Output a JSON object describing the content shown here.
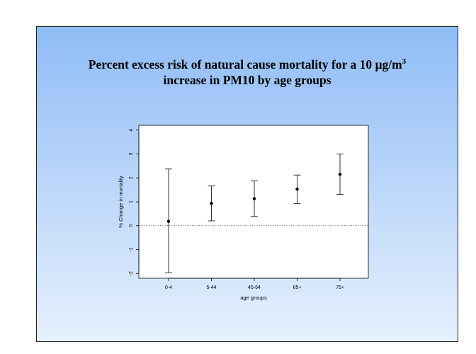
{
  "slide": {
    "title_line1_prefix": "Percent excess risk of natural cause mortality for a 10 µg/m",
    "title_line1_sup": "3",
    "title_line2": "increase in PM10 by age groups"
  },
  "chart_data": {
    "type": "scatter",
    "title": "Percent excess risk of natural cause mortality for a 10 µg/m3 increase in PM10 by age groups",
    "xlabel": "age groups",
    "ylabel": "% Change in mortality",
    "categories": [
      "0-4",
      "5-44",
      "45-64",
      "65+",
      "75+"
    ],
    "points": [
      {
        "category": "0-4",
        "estimate": 0.18,
        "lower": -1.97,
        "upper": 2.37
      },
      {
        "category": "5-44",
        "estimate": 0.93,
        "lower": 0.2,
        "upper": 1.66
      },
      {
        "category": "45-64",
        "estimate": 1.13,
        "lower": 0.38,
        "upper": 1.87
      },
      {
        "category": "65+",
        "estimate": 1.53,
        "lower": 0.92,
        "upper": 2.12
      },
      {
        "category": "75+",
        "estimate": 2.15,
        "lower": 1.31,
        "upper": 3.0
      }
    ],
    "ylim": [
      -2.2,
      4.2
    ],
    "yticks": [
      "-2",
      "-1",
      "0",
      "1",
      "2",
      "3",
      "4"
    ],
    "reference_line": {
      "y": 0,
      "style": "dotted"
    },
    "grid": false,
    "legend": "none",
    "colors": {
      "marks": "#000000",
      "plot_background": "#ffffff"
    }
  }
}
